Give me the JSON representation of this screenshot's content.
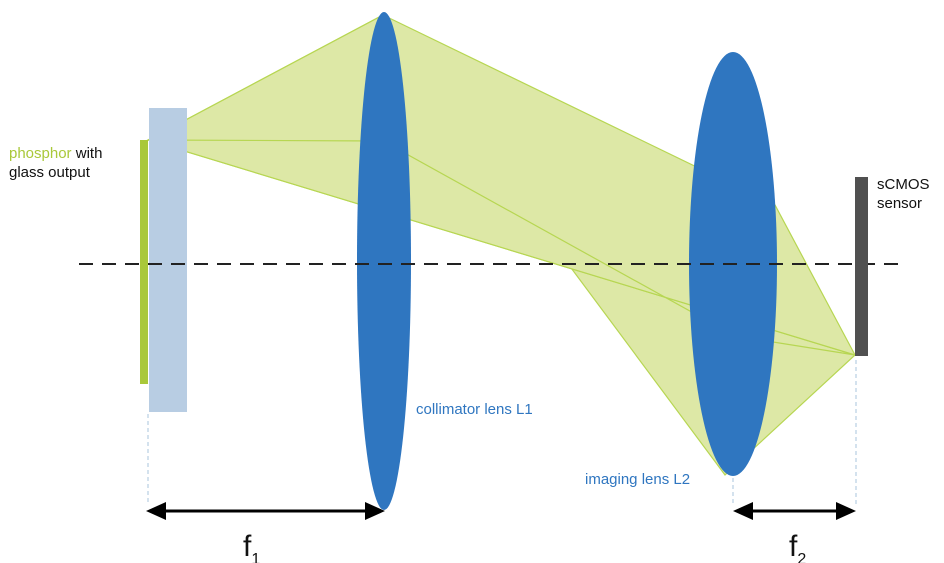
{
  "labels": {
    "phosphor_word": "phosphor",
    "phosphor_rest": " with",
    "phosphor_line2": "glass output",
    "sensor_line1": "sCMOS",
    "sensor_line2": "sensor",
    "collimator": "collimator lens L1",
    "imaging": "imaging lens L2",
    "f1_base": "f",
    "f1_sub": "1",
    "f2_base": "f",
    "f2_sub": "2"
  },
  "colors": {
    "phosphor": "#a9c83a",
    "glass": "#b8cde3",
    "lens": "#2f76c0",
    "beam_fill": "#dde8a6",
    "beam_edge": "#b7d652",
    "sensor": "#505050",
    "lens_label": "#2f76c0",
    "guide": "#a9c4de"
  }
}
